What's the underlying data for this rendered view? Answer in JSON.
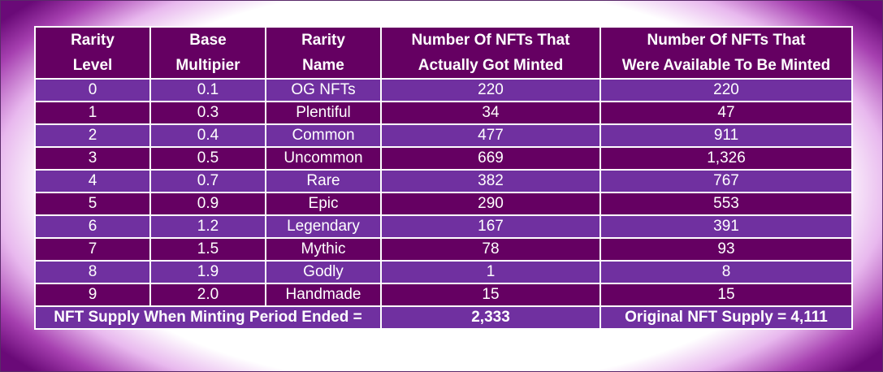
{
  "table": {
    "headers": [
      [
        "Rarity",
        "Level"
      ],
      [
        "Base",
        "Multipier"
      ],
      [
        "Rarity",
        "Name"
      ],
      [
        "Number Of NFTs That",
        "Actually Got Minted"
      ],
      [
        "Number Of NFTs That",
        "Were Available To Be Minted"
      ]
    ],
    "rows": [
      [
        "0",
        "0.1",
        "OG NFTs",
        "220",
        "220"
      ],
      [
        "1",
        "0.3",
        "Plentiful",
        "34",
        "47"
      ],
      [
        "2",
        "0.4",
        "Common",
        "477",
        "911"
      ],
      [
        "3",
        "0.5",
        "Uncommon",
        "669",
        "1,326"
      ],
      [
        "4",
        "0.7",
        "Rare",
        "382",
        "767"
      ],
      [
        "5",
        "0.9",
        "Epic",
        "290",
        "553"
      ],
      [
        "6",
        "1.2",
        "Legendary",
        "167",
        "391"
      ],
      [
        "7",
        "1.5",
        "Mythic",
        "78",
        "93"
      ],
      [
        "8",
        "1.9",
        "Godly",
        "1",
        "8"
      ],
      [
        "9",
        "2.0",
        "Handmade",
        "15",
        "15"
      ]
    ],
    "footer": {
      "label": "NFT Supply When Minting Period Ended =",
      "minted_total": "2,333",
      "original_supply": "Original NFT Supply = 4,111"
    }
  },
  "colors": {
    "dark_purple": "#650062",
    "light_purple": "#7030a0",
    "border": "#ffffff"
  }
}
